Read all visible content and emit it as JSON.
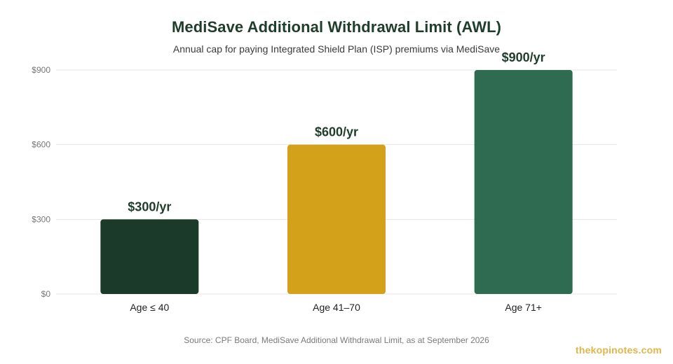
{
  "chart_data": {
    "type": "bar",
    "title": "MediSave Additional Withdrawal Limit (AWL)",
    "subtitle": "Annual cap for paying Integrated Shield Plan (ISP) premiums via MediSave",
    "categories": [
      "Age ≤ 40",
      "Age 41–70",
      "Age 71+"
    ],
    "values": [
      300,
      600,
      900
    ],
    "data_labels": [
      "$300/yr",
      "$600/yr",
      "$900/yr"
    ],
    "bar_colors": [
      "#1c3a29",
      "#d4a21a",
      "#2e6b50"
    ],
    "ylim": [
      0,
      900
    ],
    "yticks": [
      0,
      300,
      600,
      900
    ],
    "ytick_labels": [
      "$0",
      "$300",
      "$600",
      "$900"
    ],
    "xlabel": "",
    "ylabel": "",
    "grid": true,
    "legend": "none"
  },
  "footer": {
    "source": "Source: CPF Board, MediSave Additional Withdrawal Limit, as at September 2026",
    "watermark": "thekopinotes.com"
  },
  "colors": {
    "title": "#1f3d2b",
    "data_label": "#1f3d2b",
    "grid": "#e6e6e6",
    "tick_label": "#777777",
    "category_label": "#222222",
    "watermark": "#e0b64a"
  }
}
